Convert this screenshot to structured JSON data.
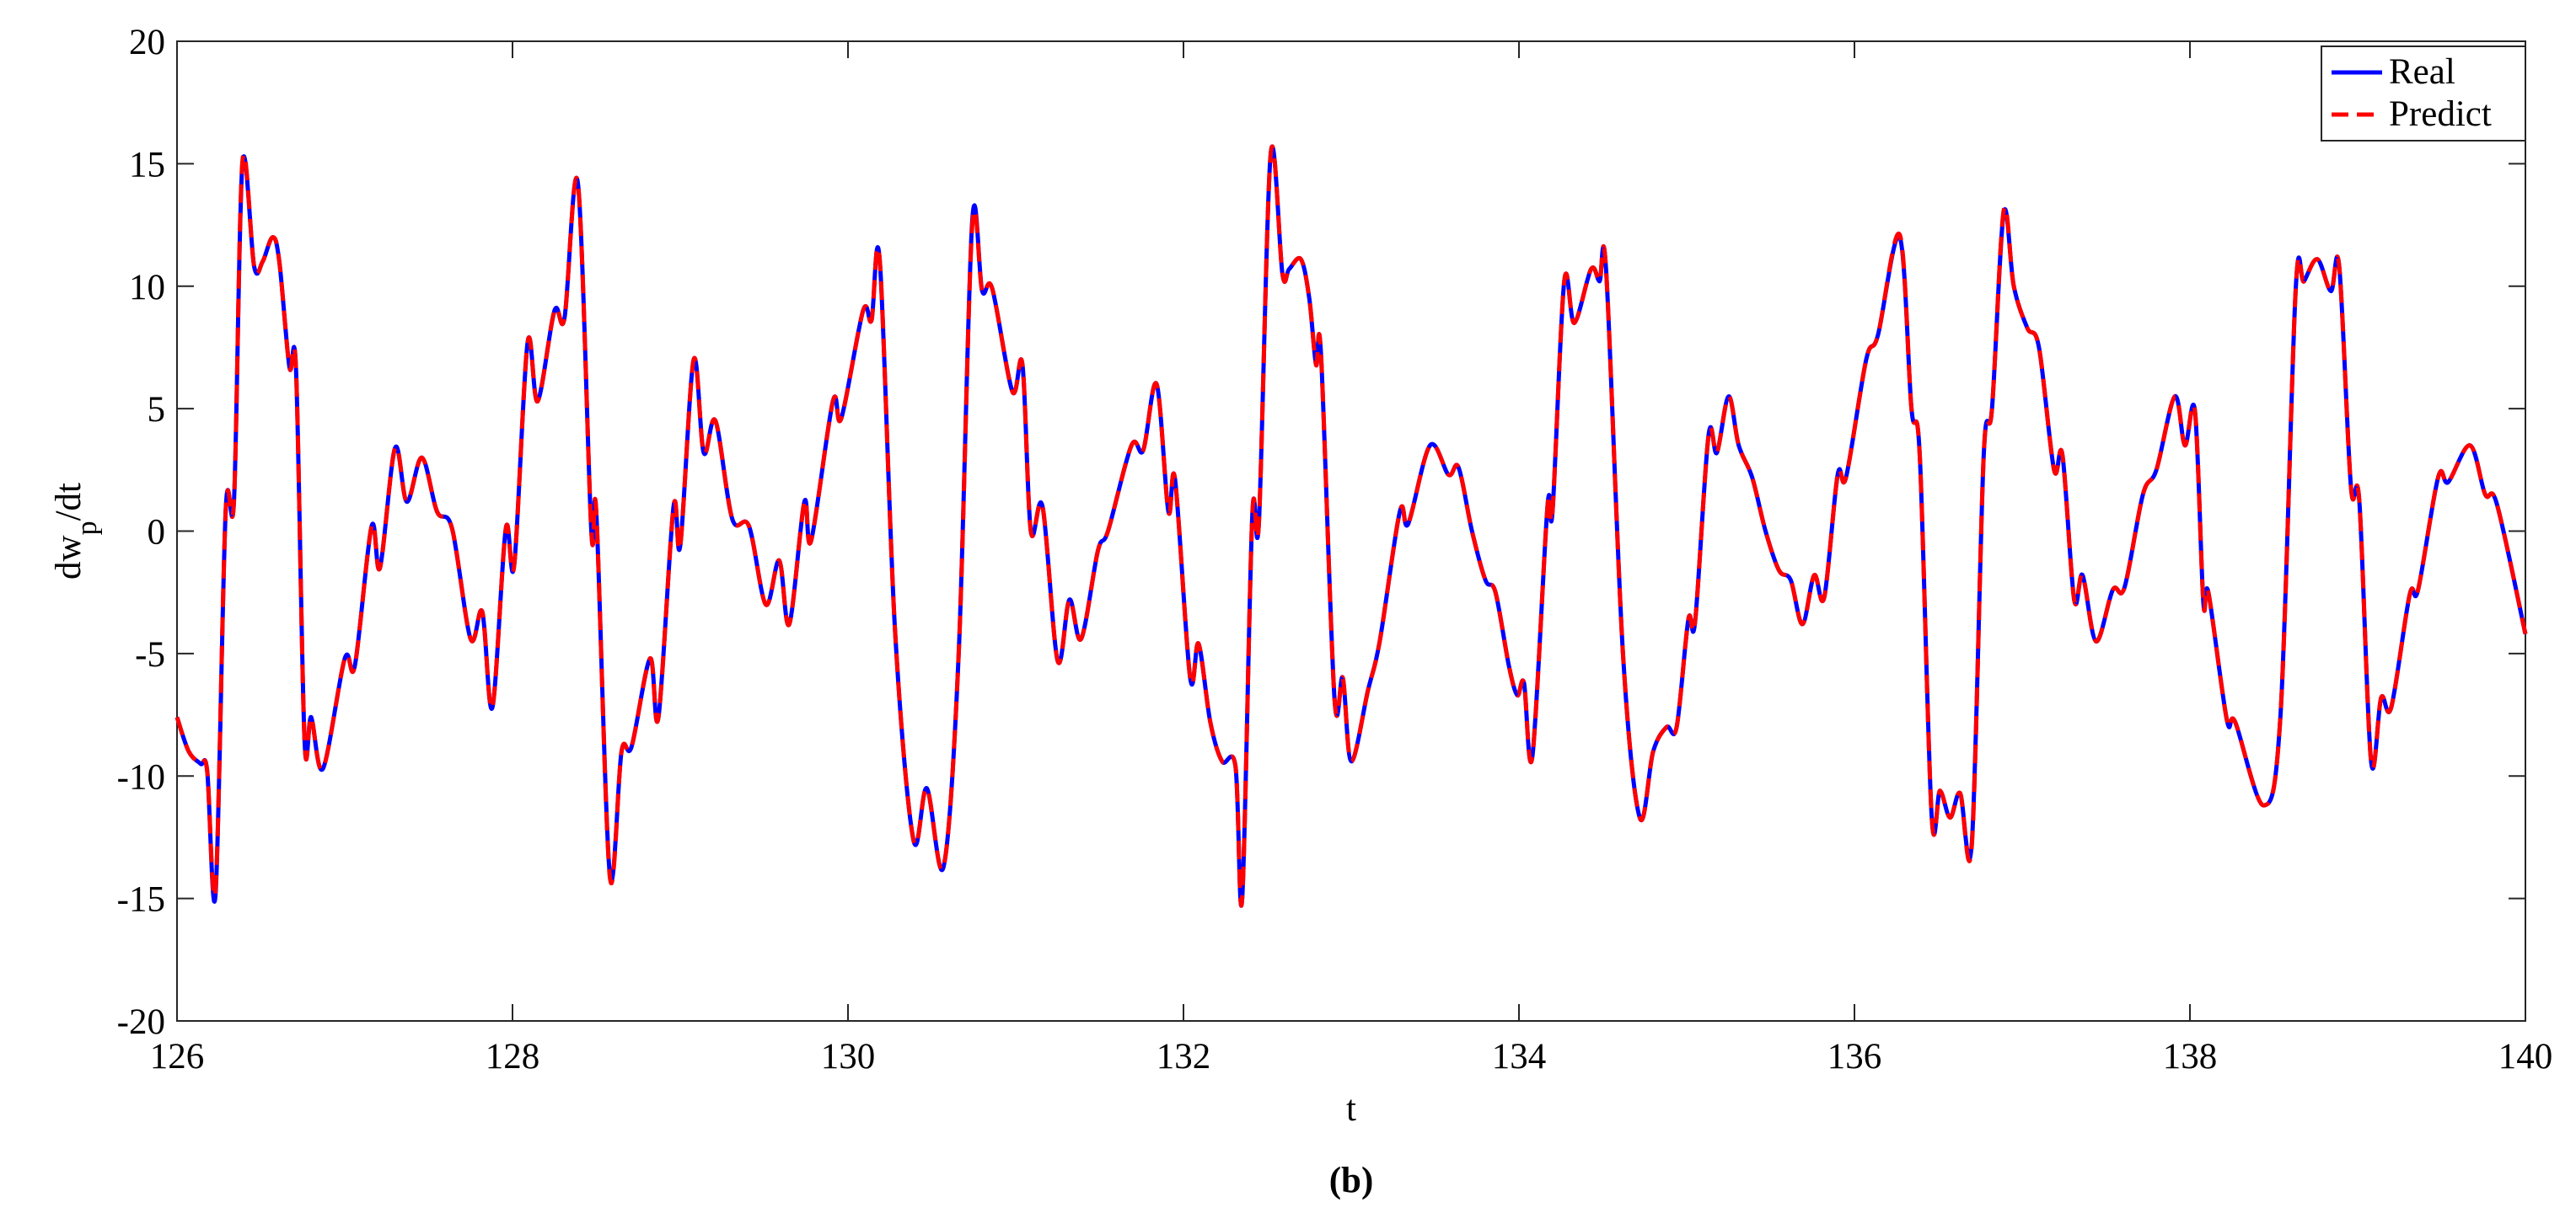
{
  "chart_data": {
    "type": "line",
    "ylabel_parts": [
      "dw",
      "p",
      "/dt"
    ],
    "xlabel": "t",
    "caption": "(b)",
    "xlim": [
      126,
      140
    ],
    "xticks": [
      126,
      128,
      130,
      132,
      134,
      136,
      138,
      140
    ],
    "ylim": [
      -20,
      20
    ],
    "yticks": [
      -20,
      -15,
      -10,
      -5,
      0,
      5,
      10,
      15,
      20
    ],
    "legend": "upper right",
    "x": [
      126.0,
      126.07,
      126.14,
      126.18,
      126.23,
      126.29,
      126.34,
      126.39,
      126.46,
      126.51,
      126.57,
      126.61,
      126.67,
      126.71,
      126.76,
      126.8,
      126.87,
      127.0,
      127.06,
      127.16,
      127.21,
      127.3,
      127.37,
      127.46,
      127.55,
      127.64,
      127.75,
      127.82,
      127.88,
      127.96,
      128.01,
      128.09,
      128.15,
      128.25,
      128.31,
      128.39,
      128.47,
      128.5,
      128.58,
      128.65,
      128.71,
      128.82,
      128.87,
      128.96,
      129.0,
      129.08,
      129.14,
      129.21,
      129.31,
      129.41,
      129.51,
      129.59,
      129.65,
      129.74,
      129.78,
      129.91,
      129.96,
      130.09,
      130.14,
      130.19,
      130.28,
      130.39,
      130.47,
      130.57,
      130.66,
      130.74,
      130.8,
      130.86,
      130.98,
      131.04,
      131.09,
      131.16,
      131.25,
      131.32,
      131.39,
      131.49,
      131.55,
      131.69,
      131.76,
      131.84,
      131.91,
      131.95,
      132.04,
      132.09,
      132.16,
      132.23,
      132.31,
      132.35,
      132.41,
      132.45,
      132.52,
      132.59,
      132.63,
      132.7,
      132.75,
      132.79,
      132.82,
      132.9,
      132.95,
      133.0,
      133.1,
      133.17,
      133.29,
      133.34,
      133.47,
      133.58,
      133.64,
      133.72,
      133.8,
      133.86,
      133.94,
      133.99,
      134.03,
      134.08,
      134.17,
      134.2,
      134.27,
      134.33,
      134.43,
      134.48,
      134.52,
      134.62,
      134.72,
      134.8,
      134.88,
      134.94,
      135.01,
      135.05,
      135.13,
      135.18,
      135.25,
      135.31,
      135.39,
      135.47,
      135.55,
      135.62,
      135.69,
      135.76,
      135.82,
      135.9,
      135.95,
      136.07,
      136.14,
      136.27,
      136.34,
      136.39,
      136.46,
      136.51,
      136.57,
      136.63,
      136.7,
      136.77,
      136.82,
      136.89,
      136.95,
      137.03,
      137.1,
      137.19,
      137.24,
      137.31,
      137.36,
      137.44,
      137.54,
      137.61,
      137.72,
      137.8,
      137.91,
      137.97,
      138.03,
      138.08,
      138.11,
      138.22,
      138.27,
      138.44,
      138.54,
      138.63,
      138.68,
      138.76,
      138.84,
      138.89,
      138.96,
      139.01,
      139.08,
      139.14,
      139.2,
      139.31,
      139.36,
      139.48,
      139.54,
      139.67,
      139.76,
      139.83,
      140.0
    ],
    "series": [
      {
        "name": "Real",
        "color": "#0000ff",
        "dash": false,
        "values": [
          -7.6,
          -9.0,
          -9.5,
          -9.8,
          -14.8,
          0.8,
          1.3,
          15,
          10.8,
          11,
          12,
          11,
          6.7,
          6.5,
          -8.5,
          -7.6,
          -9.7,
          -5.2,
          -5.5,
          0.2,
          -1.5,
          3.4,
          1.2,
          3.0,
          0.8,
          0.1,
          -4.4,
          -3.3,
          -7.2,
          0.1,
          -1.4,
          7.7,
          5.3,
          9.0,
          8.7,
          14.2,
          0,
          0.7,
          -14,
          -9,
          -8.8,
          -5.2,
          -7.6,
          1,
          -0.6,
          7,
          3.2,
          4.5,
          0.5,
          0.2,
          -3,
          -1.2,
          -3.8,
          1.2,
          -0.4,
          5.3,
          4.6,
          9,
          8.6,
          11,
          -4,
          -12.6,
          -10.5,
          -13.7,
          -5,
          12.6,
          9.8,
          9.9,
          5.7,
          6.8,
          0,
          1,
          -5.3,
          -2.8,
          -4.4,
          -0.8,
          0,
          3.5,
          3.3,
          6,
          0.8,
          2.1,
          -6,
          -4.6,
          -7.8,
          -9.4,
          -9.6,
          -15,
          0.6,
          0.4,
          15.4,
          10.5,
          10.7,
          11.1,
          9.5,
          6.8,
          7.2,
          -6.8,
          -6,
          -9.4,
          -6.5,
          -4.5,
          0.8,
          0.3,
          3.5,
          2.3,
          2.6,
          0,
          -2,
          -2.5,
          -5.5,
          -6.7,
          -6.2,
          -9.2,
          1,
          0.8,
          10.2,
          8.5,
          10.7,
          10.2,
          10.6,
          -5,
          -11.7,
          -9,
          -8,
          -8,
          -3.6,
          -3.7,
          3.9,
          3.2,
          5.5,
          3.5,
          2.2,
          0,
          -1.6,
          -2,
          -3.8,
          -1.8,
          -2.7,
          2.3,
          2.2,
          7,
          8,
          12,
          5,
          3,
          -11.6,
          -10.6,
          -11.7,
          -10.7,
          -12.7,
          3,
          5,
          13,
          10,
          8.3,
          7.5,
          2.5,
          3.1,
          -2.8,
          -1.8,
          -4.5,
          -2.4,
          -2.3,
          1.5,
          2.5,
          5.5,
          3.5,
          4.9,
          -2.9,
          -2.5,
          -7.7,
          -7.8,
          -11.2,
          -7.5,
          9.8,
          10.2,
          11.1,
          9.8,
          10.8,
          1.8,
          1.2,
          -9.4,
          -6.8,
          -7.2,
          -2.6,
          -2.4,
          2.2,
          2,
          3.5,
          1.5,
          1.1,
          -4.2
        ]
      },
      {
        "name": "Predict",
        "color": "#ff0000",
        "dash": true,
        "values": [
          -7.6,
          -9.0,
          -9.5,
          -9.8,
          -14.6,
          0.8,
          1.3,
          15.1,
          10.8,
          11,
          12,
          11,
          6.7,
          6.5,
          -8.5,
          -7.6,
          -9.7,
          -5.2,
          -5.5,
          0.2,
          -1.5,
          3.4,
          1.2,
          3.0,
          0.8,
          0.1,
          -4.4,
          -3.3,
          -7.2,
          0.1,
          -1.4,
          7.7,
          5.3,
          9.0,
          8.7,
          14.2,
          0,
          0.7,
          -14.1,
          -9,
          -8.8,
          -5.2,
          -7.6,
          1,
          -0.6,
          7,
          3.2,
          4.5,
          0.5,
          0.2,
          -3,
          -1.2,
          -3.8,
          1.2,
          -0.4,
          5.3,
          4.6,
          9,
          8.6,
          11,
          -4,
          -12.6,
          -10.5,
          -13.7,
          -5,
          12.4,
          9.8,
          9.9,
          5.7,
          6.8,
          0,
          1,
          -5.3,
          -2.8,
          -4.4,
          -0.8,
          0,
          3.5,
          3.3,
          6,
          0.8,
          2.1,
          -6,
          -4.6,
          -7.8,
          -9.4,
          -9.6,
          -15,
          0.6,
          0.4,
          15.4,
          10.5,
          10.7,
          11.1,
          9.5,
          6.8,
          7.2,
          -6.8,
          -6,
          -9.4,
          -6.5,
          -4.5,
          0.8,
          0.3,
          3.5,
          2.3,
          2.6,
          0,
          -2,
          -2.5,
          -5.5,
          -6.7,
          -6.2,
          -9.2,
          1,
          0.8,
          10.2,
          8.5,
          10.7,
          10.2,
          10.6,
          -5,
          -11.7,
          -9,
          -8,
          -8,
          -3.6,
          -3.7,
          3.9,
          3.2,
          5.5,
          3.5,
          2.2,
          0,
          -1.6,
          -2,
          -3.8,
          -1.8,
          -2.7,
          2.3,
          2.2,
          7,
          8,
          12.1,
          5,
          3,
          -11.6,
          -10.6,
          -11.7,
          -10.7,
          -12.8,
          3,
          5,
          13.1,
          10,
          8.3,
          7.5,
          2.5,
          3.1,
          -2.8,
          -1.8,
          -4.5,
          -2.4,
          -2.3,
          1.5,
          2.5,
          5.5,
          3.5,
          4.9,
          -2.9,
          -2.5,
          -7.7,
          -7.8,
          -11.2,
          -7.5,
          9.8,
          10.2,
          11.1,
          9.8,
          10.8,
          1.8,
          1.2,
          -9.4,
          -6.8,
          -7.2,
          -2.6,
          -2.4,
          2.2,
          2,
          3.5,
          1.5,
          1.1,
          -4.2
        ]
      }
    ]
  }
}
